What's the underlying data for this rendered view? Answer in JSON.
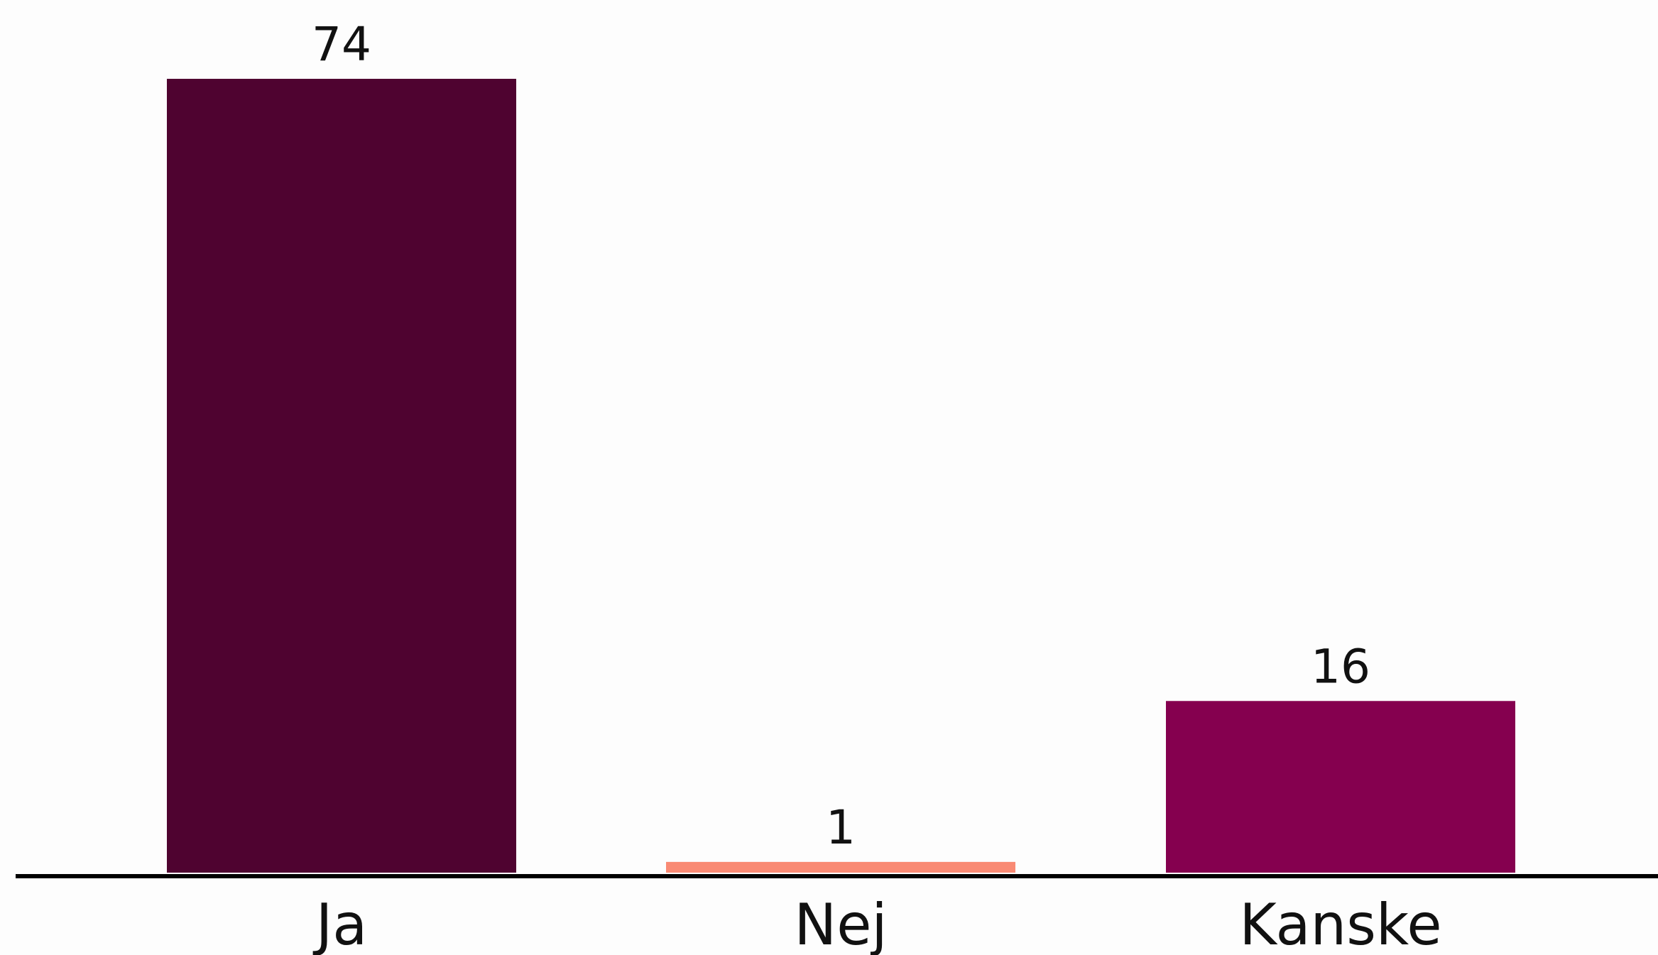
{
  "chart_data": {
    "type": "bar",
    "categories": [
      "Ja",
      "Nej",
      "Kanske"
    ],
    "values": [
      74,
      1,
      16
    ],
    "colors": [
      "#4f0330",
      "#f98a74",
      "#85004f"
    ],
    "baseline_color": "#000000",
    "title": "",
    "xlabel": "",
    "ylabel": "",
    "ylim": [
      0,
      74
    ],
    "grid": false,
    "legend": "none",
    "show_value_labels": true
  }
}
